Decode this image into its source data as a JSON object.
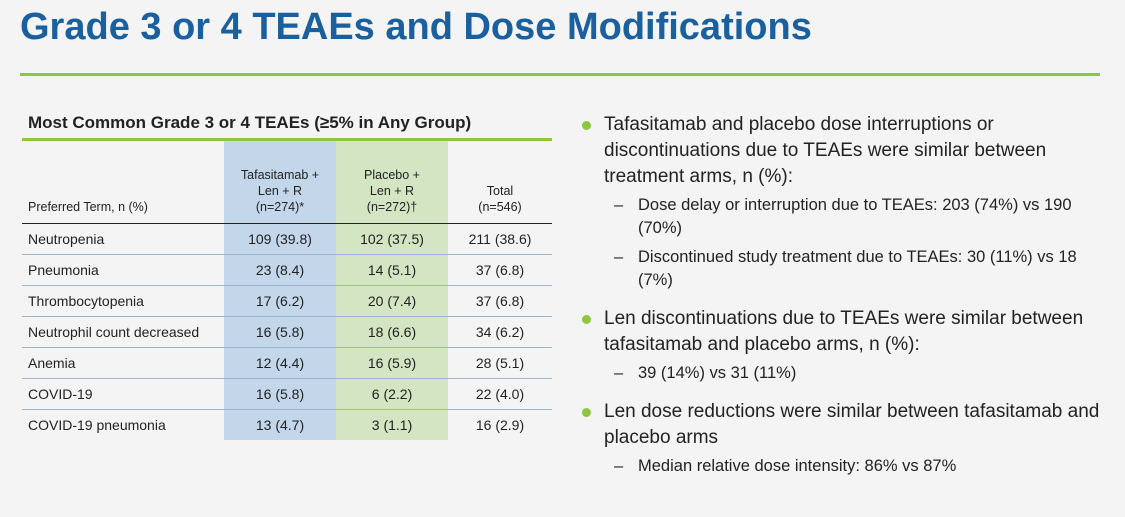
{
  "title": "Grade 3 or 4 TEAEs and Dose Modifications",
  "table": {
    "title": "Most Common Grade 3 or 4 TEAEs (≥5% in Any Group)",
    "headers": {
      "term": "Preferred Term, n (%)",
      "taf": [
        "Tafasitamab +",
        "Len + R",
        "(n=274)*"
      ],
      "pla": [
        "Placebo +",
        "Len + R",
        "(n=272)†"
      ],
      "total": [
        "Total",
        "(n=546)"
      ]
    },
    "rows": [
      {
        "term": "Neutropenia",
        "taf": "109 (39.8)",
        "pla": "102 (37.5)",
        "total": "211 (38.6)"
      },
      {
        "term": "Pneumonia",
        "taf": "23 (8.4)",
        "pla": "14 (5.1)",
        "total": "37 (6.8)"
      },
      {
        "term": "Thrombocytopenia",
        "taf": "17 (6.2)",
        "pla": "20 (7.4)",
        "total": "37 (6.8)"
      },
      {
        "term": "Neutrophil count decreased",
        "taf": "16 (5.8)",
        "pla": "18 (6.6)",
        "total": "34 (6.2)"
      },
      {
        "term": "Anemia",
        "taf": "12 (4.4)",
        "pla": "16 (5.9)",
        "total": "28 (5.1)"
      },
      {
        "term": "COVID-19",
        "taf": "16 (5.8)",
        "pla": "6 (2.2)",
        "total": "22 (4.0)"
      },
      {
        "term": "COVID-19 pneumonia",
        "taf": "13 (4.7)",
        "pla": "3 (1.1)",
        "total": "16 (2.9)"
      }
    ]
  },
  "bullets": [
    {
      "text": "Tafasitamab and placebo dose interruptions or discontinuations due to TEAEs were similar between treatment arms, n (%):",
      "subs": [
        "Dose delay or interruption due to TEAEs: 203 (74%) vs 190 (70%)",
        "Discontinued study treatment due to TEAEs: 30 (11%) vs 18 (7%)"
      ]
    },
    {
      "text": "Len discontinuations due to TEAEs were similar between tafasitamab and placebo arms, n (%):",
      "subs": [
        "39 (14%) vs 31 (11%)"
      ]
    },
    {
      "text": "Len dose reductions were similar between tafasitamab and placebo arms",
      "subs": [
        "Median relative dose intensity: 86% vs 87%"
      ]
    }
  ],
  "colors": {
    "title": "#1a5f9e",
    "accent": "#8dc63f",
    "taf_col": "#c3d6ea",
    "pla_col": "#d3e5c2"
  }
}
